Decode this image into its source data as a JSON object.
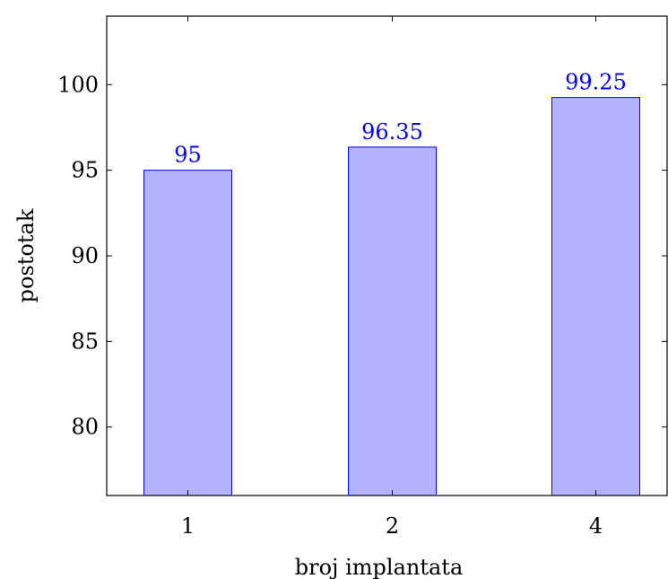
{
  "chart_data": {
    "type": "bar",
    "categories": [
      "1",
      "2",
      "4"
    ],
    "values": [
      95,
      96.35,
      99.25
    ],
    "data_labels": [
      "95",
      "96.35",
      "99.25"
    ],
    "title": "",
    "xlabel": "broj implantata",
    "ylabel": "postotak",
    "ylim": [
      76,
      104
    ],
    "yticks": [
      80,
      85,
      90,
      95,
      100
    ],
    "ytick_labels": [
      "80",
      "85",
      "90",
      "95",
      "100"
    ],
    "grid": false,
    "legend": "none",
    "colors": {
      "bar_fill": "#b3b3ff",
      "bar_stroke": "#0000ff",
      "label_color": "#0000ff",
      "axis": "#000000"
    }
  }
}
